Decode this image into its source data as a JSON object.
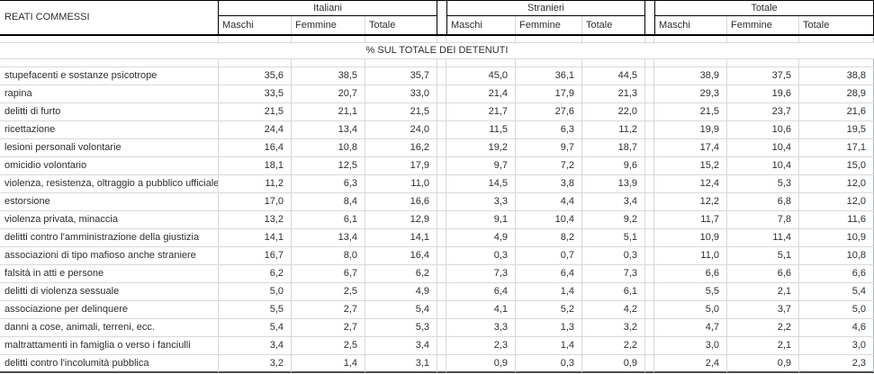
{
  "table": {
    "corner_label": "REATI COMMESSI",
    "groups": [
      {
        "label": "Italiani",
        "columns": [
          "Maschi",
          "Femmine",
          "Totale"
        ]
      },
      {
        "label": "Stranieri",
        "columns": [
          "Maschi",
          "Femmine",
          "Totale"
        ]
      },
      {
        "label": "Totale",
        "columns": [
          "Maschi",
          "Femmine",
          "Totale"
        ]
      }
    ],
    "section_title": "% SUL TOTALE DEI DETENUTI",
    "rows": [
      {
        "label": "stupefacenti e sostanze psicotrope",
        "values": [
          "35,6",
          "38,5",
          "35,7",
          "45,0",
          "36,1",
          "44,5",
          "38,9",
          "37,5",
          "38,8"
        ]
      },
      {
        "label": "rapina",
        "values": [
          "33,5",
          "20,7",
          "33,0",
          "21,4",
          "17,9",
          "21,3",
          "29,3",
          "19,6",
          "28,9"
        ]
      },
      {
        "label": "delitti di furto",
        "values": [
          "21,5",
          "21,1",
          "21,5",
          "21,7",
          "27,6",
          "22,0",
          "21,5",
          "23,7",
          "21,6"
        ]
      },
      {
        "label": "ricettazione",
        "values": [
          "24,4",
          "13,4",
          "24,0",
          "11,5",
          "6,3",
          "11,2",
          "19,9",
          "10,6",
          "19,5"
        ]
      },
      {
        "label": "lesioni personali volontarie",
        "values": [
          "16,4",
          "10,8",
          "16,2",
          "19,2",
          "9,7",
          "18,7",
          "17,4",
          "10,4",
          "17,1"
        ]
      },
      {
        "label": "omicidio volontario",
        "values": [
          "18,1",
          "12,5",
          "17,9",
          "9,7",
          "7,2",
          "9,6",
          "15,2",
          "10,4",
          "15,0"
        ]
      },
      {
        "label": "violenza, resistenza, oltraggio a pubblico ufficiale",
        "values": [
          "11,2",
          "6,3",
          "11,0",
          "14,5",
          "3,8",
          "13,9",
          "12,4",
          "5,3",
          "12,0"
        ]
      },
      {
        "label": "estorsione",
        "values": [
          "17,0",
          "8,4",
          "16,6",
          "3,3",
          "4,4",
          "3,4",
          "12,2",
          "6,8",
          "12,0"
        ]
      },
      {
        "label": "violenza privata, minaccia",
        "values": [
          "13,2",
          "6,1",
          "12,9",
          "9,1",
          "10,4",
          "9,2",
          "11,7",
          "7,8",
          "11,6"
        ]
      },
      {
        "label": "delitti contro l'amministrazione della giustizia",
        "values": [
          "14,1",
          "13,4",
          "14,1",
          "4,9",
          "8,2",
          "5,1",
          "10,9",
          "11,4",
          "10,9"
        ]
      },
      {
        "label": "associazioni di tipo mafioso anche straniere",
        "values": [
          "16,7",
          "8,0",
          "16,4",
          "0,3",
          "0,7",
          "0,3",
          "11,0",
          "5,1",
          "10,8"
        ]
      },
      {
        "label": "falsità in atti e persone",
        "values": [
          "6,2",
          "6,7",
          "6,2",
          "7,3",
          "6,4",
          "7,3",
          "6,6",
          "6,6",
          "6,6"
        ]
      },
      {
        "label": "delitti di violenza sessuale",
        "values": [
          "5,0",
          "2,5",
          "4,9",
          "6,4",
          "1,4",
          "6,1",
          "5,5",
          "2,1",
          "5,4"
        ]
      },
      {
        "label": "associazione per delinquere",
        "values": [
          "5,5",
          "2,7",
          "5,4",
          "4,1",
          "5,2",
          "4,2",
          "5,0",
          "3,7",
          "5,0"
        ]
      },
      {
        "label": "danni a cose, animali, terreni, ecc.",
        "values": [
          "5,4",
          "2,7",
          "5,3",
          "3,3",
          "1,3",
          "3,2",
          "4,7",
          "2,2",
          "4,6"
        ]
      },
      {
        "label": "maltrattamenti in famiglia o verso i fanciulli",
        "values": [
          "3,4",
          "2,5",
          "3,4",
          "2,3",
          "1,4",
          "2,2",
          "3,0",
          "2,1",
          "3,0"
        ]
      },
      {
        "label": "delitti contro l'incolumità pubblica",
        "values": [
          "3,2",
          "1,4",
          "3,1",
          "0,9",
          "0,3",
          "0,9",
          "2,4",
          "0,9",
          "2,3"
        ]
      }
    ]
  },
  "colors": {
    "grid_line": "#d9d9d9",
    "header_border": "#000000",
    "bottom_border": "#4d4d4d",
    "right_edge": "#a9b9c9",
    "text": "#2e2e2e",
    "background": "#ffffff"
  }
}
